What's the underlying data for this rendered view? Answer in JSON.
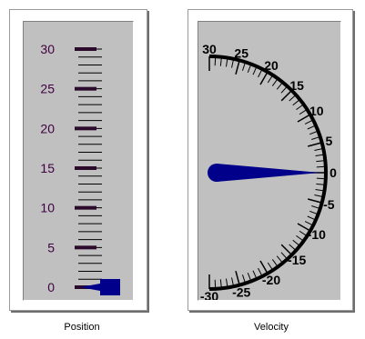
{
  "position_gauge": {
    "caption": "Position",
    "scale_labels": [
      "30",
      "25",
      "20",
      "15",
      "10",
      "5",
      "0"
    ],
    "min": 0,
    "max": 30,
    "value": 0,
    "label_color": "#400040",
    "major_tick_color": "#2b0a2b",
    "pointer_color": "#00008b",
    "face_color": "#c0c0c0"
  },
  "velocity_gauge": {
    "caption": "Velocity",
    "scale_labels": [
      "30",
      "25",
      "20",
      "15",
      "10",
      "5",
      "0",
      "-5",
      "-10",
      "-15",
      "-20",
      "-25",
      "-30"
    ],
    "min": -30,
    "max": 30,
    "value": 0,
    "label_color": "#000000",
    "pointer_color": "#00008b",
    "face_color": "#c0c0c0"
  }
}
